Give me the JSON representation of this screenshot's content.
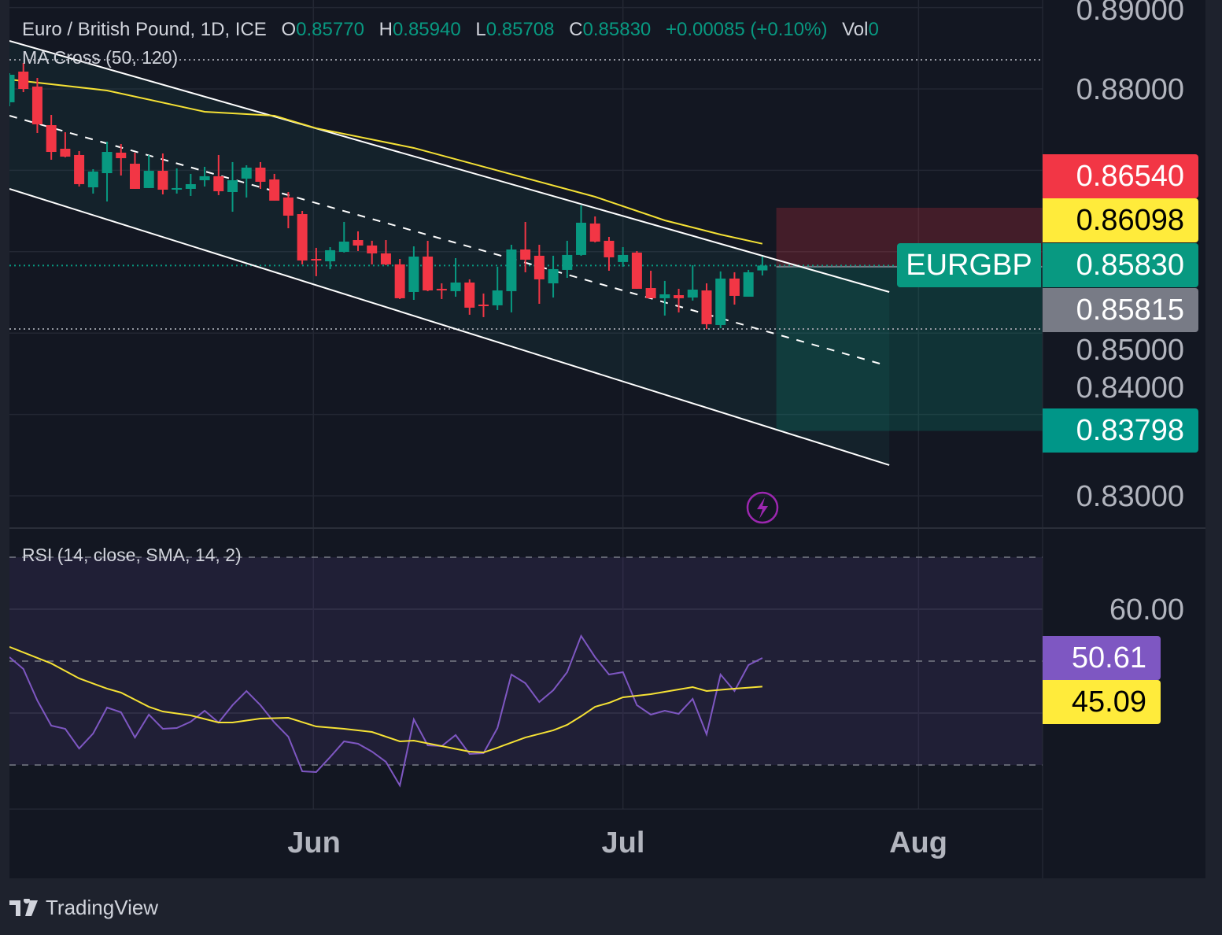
{
  "header": {
    "title": "Euro / British Pound, 1D, ICE",
    "ohlc": [
      {
        "label": "O",
        "value": "0.85770"
      },
      {
        "label": "H",
        "value": "0.85940"
      },
      {
        "label": "L",
        "value": "0.85708"
      },
      {
        "label": "C",
        "value": "0.85830"
      }
    ],
    "change": "+0.00085 (+0.10%)",
    "vol_label": "Vol",
    "vol_value": "0"
  },
  "indicators": {
    "ma_label": "MA Cross (50, 120)",
    "rsi_label": "RSI (14, close, SMA, 14, 2)"
  },
  "price_axis": {
    "ticks": [
      {
        "label": "0.89000",
        "value": 0.89
      },
      {
        "label": "0.88000",
        "value": 0.88
      },
      {
        "label": "0.85000",
        "value": 0.85
      },
      {
        "label": "0.84000",
        "value": 0.84
      },
      {
        "label": "0.83000",
        "value": 0.83
      }
    ],
    "labels": {
      "stop": "0.86540",
      "ma": "0.86098",
      "symbol": "EURGBP",
      "last": "0.85830",
      "entry": "0.85815",
      "target": "0.83798"
    }
  },
  "rsi_axis": {
    "ticks": [
      {
        "label": "60.00",
        "value": 60
      }
    ],
    "labels": {
      "rsi": "50.61",
      "sma": "45.09"
    }
  },
  "time_axis": {
    "ticks": [
      {
        "label": "Jun",
        "bar_index": 21.8
      },
      {
        "label": "Jul",
        "bar_index": 44
      },
      {
        "label": "Aug",
        "bar_index": 65.2
      }
    ]
  },
  "branding": {
    "logo_text": "TradingView"
  },
  "colors": {
    "up": "#089981",
    "down": "#f23645",
    "ma": "#f5e135",
    "rsi": "#7e57c2",
    "rsi_sma": "#f5e135",
    "stop_label": "#f23645",
    "ma_label": "#ffeb3b",
    "last_label": "#089981",
    "entry_label": "#787b86",
    "target_label": "#009688"
  },
  "icons": {
    "alert": "lightning-icon"
  },
  "chart_data": {
    "type": "candlestick",
    "symbol": "EURGBP",
    "timeframe": "1D",
    "ylim": [
      0.826,
      0.891
    ],
    "candles_ohlc": [
      [
        0.87836,
        0.88193,
        0.87787,
        0.88174
      ],
      [
        0.88213,
        0.88319,
        0.87961,
        0.88
      ],
      [
        0.88029,
        0.88135,
        0.87458,
        0.87565
      ],
      [
        0.87555,
        0.87681,
        0.8713,
        0.87226
      ],
      [
        0.87265,
        0.87468,
        0.87159,
        0.87168
      ],
      [
        0.87188,
        0.87236,
        0.86801,
        0.8683
      ],
      [
        0.86791,
        0.87014,
        0.86714,
        0.86985
      ],
      [
        0.86965,
        0.87352,
        0.86617,
        0.87226
      ],
      [
        0.87217,
        0.87323,
        0.86936,
        0.87149
      ],
      [
        0.87081,
        0.87217,
        0.86772,
        0.86772
      ],
      [
        0.86782,
        0.87188,
        0.86782,
        0.86994
      ],
      [
        0.86994,
        0.87207,
        0.86704,
        0.86762
      ],
      [
        0.86762,
        0.87023,
        0.86714,
        0.86782
      ],
      [
        0.86772,
        0.86956,
        0.86685,
        0.8683
      ],
      [
        0.86878,
        0.87043,
        0.86801,
        0.86927
      ],
      [
        0.86927,
        0.87188,
        0.86695,
        0.86743
      ],
      [
        0.86733,
        0.87101,
        0.86491,
        0.86878
      ],
      [
        0.86898,
        0.87062,
        0.86666,
        0.87033
      ],
      [
        0.87033,
        0.87101,
        0.86772,
        0.86859
      ],
      [
        0.86888,
        0.86956,
        0.86627,
        0.86627
      ],
      [
        0.86666,
        0.86733,
        0.86288,
        0.86443
      ],
      [
        0.86462,
        0.86501,
        0.85844,
        0.85892
      ],
      [
        0.85911,
        0.86047,
        0.85699,
        0.85892
      ],
      [
        0.85882,
        0.86056,
        0.85786,
        0.86018
      ],
      [
        0.85998,
        0.86366,
        0.85989,
        0.86124
      ],
      [
        0.86143,
        0.8625,
        0.86008,
        0.86076
      ],
      [
        0.86076,
        0.86134,
        0.85844,
        0.85979
      ],
      [
        0.85979,
        0.86143,
        0.85834,
        0.85844
      ],
      [
        0.85844,
        0.85911,
        0.85418,
        0.85428
      ],
      [
        0.85505,
        0.86066,
        0.85408,
        0.8594
      ],
      [
        0.8594,
        0.86134,
        0.85515,
        0.85524
      ],
      [
        0.85544,
        0.85611,
        0.85418,
        0.85524
      ],
      [
        0.85515,
        0.85921,
        0.85447,
        0.85621
      ],
      [
        0.85621,
        0.8566,
        0.85225,
        0.85312
      ],
      [
        0.8535,
        0.85486,
        0.85196,
        0.85331
      ],
      [
        0.85341,
        0.85815,
        0.85283,
        0.85524
      ],
      [
        0.85515,
        0.86085,
        0.85254,
        0.86027
      ],
      [
        0.86027,
        0.86366,
        0.85747,
        0.85902
      ],
      [
        0.8595,
        0.86085,
        0.8536,
        0.8566
      ],
      [
        0.85611,
        0.8595,
        0.85437,
        0.85786
      ],
      [
        0.85776,
        0.86134,
        0.85679,
        0.8596
      ],
      [
        0.8596,
        0.86569,
        0.8595,
        0.86356
      ],
      [
        0.86346,
        0.86433,
        0.86114,
        0.86124
      ],
      [
        0.86134,
        0.86182,
        0.85766,
        0.85931
      ],
      [
        0.85873,
        0.86056,
        0.85815,
        0.8596
      ],
      [
        0.85989,
        0.86008,
        0.85544,
        0.85544
      ],
      [
        0.85553,
        0.85766,
        0.85428,
        0.85428
      ],
      [
        0.85428,
        0.85641,
        0.85215,
        0.85476
      ],
      [
        0.85466,
        0.85544,
        0.85254,
        0.85428
      ],
      [
        0.85437,
        0.85834,
        0.85399,
        0.85534
      ],
      [
        0.85524,
        0.85611,
        0.85051,
        0.85109
      ],
      [
        0.85099,
        0.85757,
        0.8506,
        0.8567
      ],
      [
        0.8567,
        0.85747,
        0.8535,
        0.85457
      ],
      [
        0.85447,
        0.85776,
        0.85447,
        0.85747
      ],
      [
        0.8577,
        0.8594,
        0.85708,
        0.8583
      ]
    ],
    "ma_line": [
      [
        0,
        0.88116
      ],
      [
        7,
        0.87981
      ],
      [
        14,
        0.8772
      ],
      [
        19,
        0.87671
      ],
      [
        22,
        0.87517
      ],
      [
        29,
        0.87275
      ],
      [
        42,
        0.86675
      ],
      [
        47,
        0.86385
      ],
      [
        51,
        0.86211
      ],
      [
        54,
        0.86098
      ]
    ],
    "channel": {
      "upper": [
        [
          0,
          0.8859
        ],
        [
          63.1,
          0.85505
        ]
      ],
      "middle": [
        [
          0,
          0.87671
        ],
        [
          62.6,
          0.84616
        ]
      ],
      "lower": [
        [
          0,
          0.86772
        ],
        [
          63.1,
          0.83378
        ]
      ]
    },
    "horizontal_lines": [
      0.88358,
      0.8505
    ],
    "last_price": 0.8583,
    "position": {
      "side": "short",
      "start_bar_index": 55,
      "entry": 0.85815,
      "stop": 0.8654,
      "target": 0.83798
    },
    "rsi": {
      "ylim": [
        20,
        75
      ],
      "bands": [
        70,
        50,
        30
      ],
      "values": [
        50.76,
        48.48,
        42.42,
        37.58,
        36.97,
        33.18,
        36.06,
        41.06,
        40.15,
        35.3,
        39.7,
        36.97,
        37.12,
        38.33,
        40.45,
        38.18,
        41.52,
        44.24,
        41.52,
        38.18,
        35.45,
        28.79,
        28.64,
        31.52,
        34.55,
        34.09,
        32.58,
        30.61,
        26.06,
        38.79,
        33.79,
        33.64,
        35.76,
        32.12,
        32.27,
        37.12,
        47.42,
        45.76,
        42.12,
        44.39,
        47.88,
        54.85,
        50.76,
        47.42,
        47.88,
        41.52,
        39.7,
        40.45,
        39.85,
        42.73,
        35.91,
        47.42,
        44.24,
        49.24,
        50.61
      ],
      "sma_points": [
        [
          0,
          52.73
        ],
        [
          3,
          49.55
        ],
        [
          5,
          46.67
        ],
        [
          7,
          44.7
        ],
        [
          8,
          43.94
        ],
        [
          10,
          41.21
        ],
        [
          11,
          40.3
        ],
        [
          13,
          39.55
        ],
        [
          15,
          38.18
        ],
        [
          16,
          38.18
        ],
        [
          18,
          38.94
        ],
        [
          20,
          39.09
        ],
        [
          22,
          37.42
        ],
        [
          24,
          36.97
        ],
        [
          26,
          36.36
        ],
        [
          28,
          34.55
        ],
        [
          29,
          34.7
        ],
        [
          31,
          33.64
        ],
        [
          33,
          32.58
        ],
        [
          34,
          32.42
        ],
        [
          35,
          33.33
        ],
        [
          37,
          35.3
        ],
        [
          39,
          36.67
        ],
        [
          40,
          37.73
        ],
        [
          41,
          39.39
        ],
        [
          42,
          41.21
        ],
        [
          43,
          41.97
        ],
        [
          44,
          43.03
        ],
        [
          46,
          43.64
        ],
        [
          48,
          44.55
        ],
        [
          49,
          45.0
        ],
        [
          50,
          44.24
        ],
        [
          52,
          44.7
        ],
        [
          54,
          45.09
        ]
      ]
    }
  }
}
